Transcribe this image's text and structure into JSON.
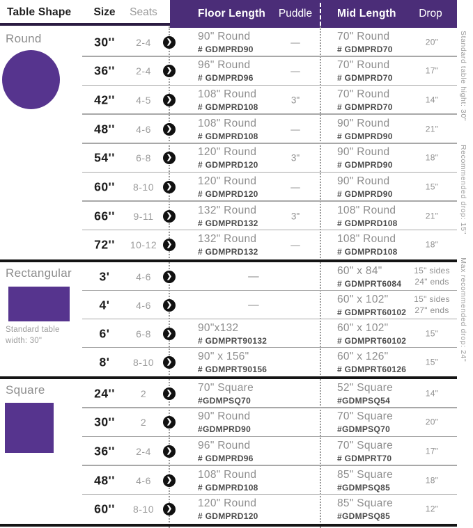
{
  "header": {
    "table_shape": "Table Shape",
    "size": "Size",
    "seats": "Seats",
    "floor_length": "Floor Length",
    "puddle": "Puddle",
    "mid_length": "Mid Length",
    "drop": "Drop"
  },
  "side_notes": [
    "Standard table hight: 30\"",
    "Recommended drop: 15\"",
    "Max recommended drop: 24\""
  ],
  "colors": {
    "header_purple": "#4b2d78",
    "shape_purple": "#56348e",
    "header_underline": "#2b1b42",
    "section_divider": "#141414",
    "row_divider": "#a8a8a8",
    "muted_text": "#8d8d8d"
  },
  "icons": {
    "row_arrow": "chevron-right-circle",
    "row_arrow_glyph": "❯"
  },
  "sections": [
    {
      "shape": "Round",
      "shape_type": "circle",
      "note": "",
      "rows": [
        {
          "size": "30''",
          "seats": "2-4",
          "floor": "90\" Round",
          "floor_code": "# GDMPRD90",
          "floor_span": false,
          "puddle": "—",
          "mid": "70\" Round",
          "mid_code": "# GDMPRD70",
          "drop": "20\"",
          "drop2": ""
        },
        {
          "size": "36''",
          "seats": "2-4",
          "floor": "96\" Round",
          "floor_code": "# GDMPRD96",
          "floor_span": false,
          "puddle": "—",
          "mid": "70\" Round",
          "mid_code": "# GDMPRD70",
          "drop": "17\"",
          "drop2": ""
        },
        {
          "size": "42''",
          "seats": "4-5",
          "floor": "108\" Round",
          "floor_code": "# GDMPRD108",
          "floor_span": false,
          "puddle": "3\"",
          "mid": "70\" Round",
          "mid_code": "# GDMPRD70",
          "drop": "14\"",
          "drop2": ""
        },
        {
          "size": "48''",
          "seats": "4-6",
          "floor": "108\" Round",
          "floor_code": "# GDMPRD108",
          "floor_span": false,
          "puddle": "—",
          "mid": "90\" Round",
          "mid_code": "# GDMPRD90",
          "drop": "21\"",
          "drop2": ""
        },
        {
          "size": "54''",
          "seats": "6-8",
          "floor": "120\" Round",
          "floor_code": "# GDMPRD120",
          "floor_span": false,
          "puddle": "3\"",
          "mid": "90\" Round",
          "mid_code": "# GDMPRD90",
          "drop": "18\"",
          "drop2": ""
        },
        {
          "size": "60''",
          "seats": "8-10",
          "floor": "120\" Round",
          "floor_code": "# GDMPRD120",
          "floor_span": false,
          "puddle": "—",
          "mid": "90\" Round",
          "mid_code": "# GDMPRD90",
          "drop": "15\"",
          "drop2": ""
        },
        {
          "size": "66''",
          "seats": "9-11",
          "floor": "132\" Round",
          "floor_code": "# GDMPRD132",
          "floor_span": false,
          "puddle": "3\"",
          "mid": "108\" Round",
          "mid_code": "# GDMPRD108",
          "drop": "21\"",
          "drop2": ""
        },
        {
          "size": "72''",
          "seats": "10-12",
          "floor": "132\" Round",
          "floor_code": "# GDMPRD132",
          "floor_span": false,
          "puddle": "—",
          "mid": "108\" Round",
          "mid_code": "# GDMPRD108",
          "drop": "18\"",
          "drop2": ""
        }
      ]
    },
    {
      "shape": "Rectangular",
      "shape_type": "rect",
      "note": "Standard table width: 30\"",
      "rows": [
        {
          "size": "3'",
          "seats": "4-6",
          "floor": "—",
          "floor_code": "",
          "floor_span": true,
          "puddle": "",
          "mid": "60\" x 84\"",
          "mid_code": "# GDMPRT6084",
          "drop": "15\" sides",
          "drop2": "24\" ends"
        },
        {
          "size": "4'",
          "seats": "4-6",
          "floor": "—",
          "floor_code": "",
          "floor_span": true,
          "puddle": "",
          "mid": "60\" x 102\"",
          "mid_code": "# GDMPRT60102",
          "drop": "15\" sides",
          "drop2": "27\" ends"
        },
        {
          "size": "6'",
          "seats": "6-8",
          "floor": "90\"x132",
          "floor_code": "# GDMPRT90132",
          "floor_span": false,
          "puddle": "",
          "mid": "60\" x 102\"",
          "mid_code": "# GDMPRT60102",
          "drop": "15\"",
          "drop2": ""
        },
        {
          "size": "8'",
          "seats": "8-10",
          "floor": "90\" x 156\"",
          "floor_code": "# GDMPRT90156",
          "floor_span": false,
          "puddle": "",
          "mid": "60\" x 126\"",
          "mid_code": "# GDMPRT60126",
          "drop": "15\"",
          "drop2": ""
        }
      ]
    },
    {
      "shape": "Square",
      "shape_type": "square",
      "note": "",
      "rows": [
        {
          "size": "24''",
          "seats": "2",
          "floor": "70\" Square",
          "floor_code": "#GDMPSQ70",
          "floor_span": false,
          "puddle": "",
          "mid": "52\" Square",
          "mid_code": "#GDMPSQ54",
          "drop": "14\"",
          "drop2": ""
        },
        {
          "size": "30''",
          "seats": "2",
          "floor": "90\" Round",
          "floor_code": "#GDMPRD90",
          "floor_span": false,
          "puddle": "",
          "mid": "70\" Square",
          "mid_code": "#GDMPSQ70",
          "drop": "20\"",
          "drop2": ""
        },
        {
          "size": "36''",
          "seats": "2-4",
          "floor": "96\" Round",
          "floor_code": "# GDMPRD96",
          "floor_span": false,
          "puddle": "",
          "mid": "70\" Square",
          "mid_code": "# GDMPRT70",
          "drop": "17\"",
          "drop2": ""
        },
        {
          "size": "48''",
          "seats": "4-6",
          "floor": "108\" Round",
          "floor_code": "# GDMPRD108",
          "floor_span": false,
          "puddle": "",
          "mid": "85\" Square",
          "mid_code": "#GDMPSQ85",
          "drop": "18\"",
          "drop2": ""
        },
        {
          "size": "60''",
          "seats": "8-10",
          "floor": "120\" Round",
          "floor_code": "# GDMPRD120",
          "floor_span": false,
          "puddle": "",
          "mid": "85\" Square",
          "mid_code": "#GDMPSQ85",
          "drop": "12\"",
          "drop2": ""
        }
      ]
    }
  ],
  "chart_data": {
    "type": "table",
    "columns": [
      "Table Shape",
      "Size",
      "Seats",
      "Floor Length",
      "Floor Length Item #",
      "Puddle",
      "Mid Length",
      "Mid Length Item #",
      "Drop"
    ],
    "rows": [
      [
        "Round",
        "30''",
        "2-4",
        "90\" Round",
        "# GDMPRD90",
        "—",
        "70\" Round",
        "# GDMPRD70",
        "20\""
      ],
      [
        "Round",
        "36''",
        "2-4",
        "96\" Round",
        "# GDMPRD96",
        "—",
        "70\" Round",
        "# GDMPRD70",
        "17\""
      ],
      [
        "Round",
        "42''",
        "4-5",
        "108\" Round",
        "# GDMPRD108",
        "3\"",
        "70\" Round",
        "# GDMPRD70",
        "14\""
      ],
      [
        "Round",
        "48''",
        "4-6",
        "108\" Round",
        "# GDMPRD108",
        "—",
        "90\" Round",
        "# GDMPRD90",
        "21\""
      ],
      [
        "Round",
        "54''",
        "6-8",
        "120\" Round",
        "# GDMPRD120",
        "3\"",
        "90\" Round",
        "# GDMPRD90",
        "18\""
      ],
      [
        "Round",
        "60''",
        "8-10",
        "120\" Round",
        "# GDMPRD120",
        "—",
        "90\" Round",
        "# GDMPRD90",
        "15\""
      ],
      [
        "Round",
        "66''",
        "9-11",
        "132\" Round",
        "# GDMPRD132",
        "3\"",
        "108\" Round",
        "# GDMPRD108",
        "21\""
      ],
      [
        "Round",
        "72''",
        "10-12",
        "132\" Round",
        "# GDMPRD132",
        "—",
        "108\" Round",
        "# GDMPRD108",
        "18\""
      ],
      [
        "Rectangular",
        "3'",
        "4-6",
        "—",
        "",
        "",
        "60\" x 84\"",
        "# GDMPRT6084",
        "15\" sides 24\" ends"
      ],
      [
        "Rectangular",
        "4'",
        "4-6",
        "—",
        "",
        "",
        "60\" x 102\"",
        "# GDMPRT60102",
        "15\" sides 27\" ends"
      ],
      [
        "Rectangular",
        "6'",
        "6-8",
        "90\"x132",
        "# GDMPRT90132",
        "",
        "60\" x 102\"",
        "# GDMPRT60102",
        "15\""
      ],
      [
        "Rectangular",
        "8'",
        "8-10",
        "90\" x 156\"",
        "# GDMPRT90156",
        "",
        "60\" x 126\"",
        "# GDMPRT60126",
        "15\""
      ],
      [
        "Square",
        "24''",
        "2",
        "70\" Square",
        "#GDMPSQ70",
        "",
        "52\" Square",
        "#GDMPSQ54",
        "14\""
      ],
      [
        "Square",
        "30''",
        "2",
        "90\" Round",
        "#GDMPRD90",
        "",
        "70\" Square",
        "#GDMPSQ70",
        "20\""
      ],
      [
        "Square",
        "36''",
        "2-4",
        "96\" Round",
        "# GDMPRD96",
        "",
        "70\" Square",
        "# GDMPRT70",
        "17\""
      ],
      [
        "Square",
        "48''",
        "4-6",
        "108\" Round",
        "# GDMPRD108",
        "",
        "85\" Square",
        "#GDMPSQ85",
        "18\""
      ],
      [
        "Square",
        "60''",
        "8-10",
        "120\" Round",
        "# GDMPRD120",
        "",
        "85\" Square",
        "#GDMPSQ85",
        "12\""
      ]
    ]
  }
}
